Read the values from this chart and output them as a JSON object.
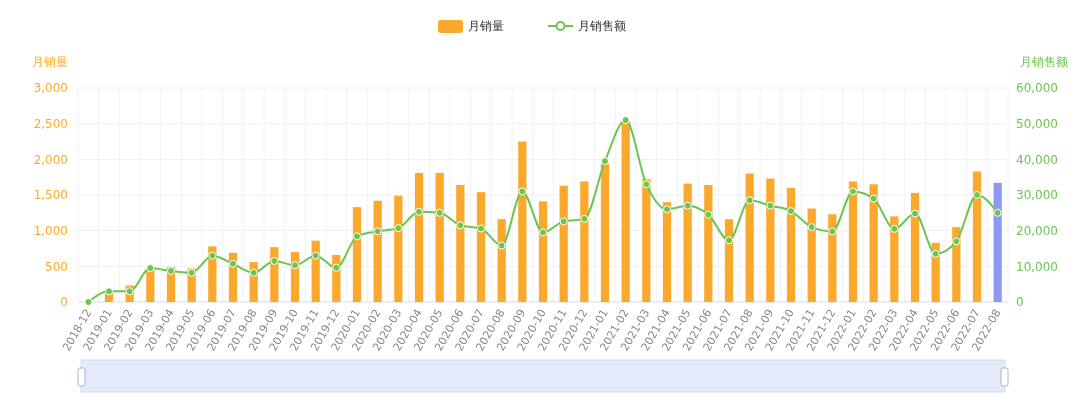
{
  "chart_data": {
    "type": "bar",
    "ylabel": "月销量",
    "y2label": "月销售额",
    "legend": "top",
    "grid": true,
    "categories": [
      "2018-12",
      "2019-01",
      "2019-02",
      "2019-03",
      "2019-04",
      "2019-05",
      "2019-06",
      "2019-07",
      "2019-08",
      "2019-09",
      "2019-10",
      "2019-11",
      "2019-12",
      "2020-01",
      "2020-02",
      "2020-03",
      "2020-04",
      "2020-05",
      "2020-06",
      "2020-07",
      "2020-08",
      "2020-09",
      "2020-10",
      "2020-11",
      "2020-12",
      "2021-01",
      "2021-02",
      "2021-03",
      "2021-04",
      "2021-05",
      "2021-06",
      "2021-07",
      "2021-08",
      "2021-09",
      "2021-10",
      "2021-11",
      "2021-12",
      "2022-01",
      "2022-02",
      "2022-03",
      "2022-04",
      "2022-05",
      "2022-06",
      "2022-07",
      "2022-08"
    ],
    "ylim": [
      0,
      3000
    ],
    "yticks": [
      {
        "value": 0,
        "label": "0"
      },
      {
        "value": 500,
        "label": "500"
      },
      {
        "value": 1000,
        "label": "1,000"
      },
      {
        "value": 1500,
        "label": "1,500"
      },
      {
        "value": 2000,
        "label": "2,000"
      },
      {
        "value": 2500,
        "label": "2,500"
      },
      {
        "value": 3000,
        "label": "3,000"
      }
    ],
    "y2lim": [
      0,
      60000
    ],
    "y2ticks": [
      {
        "value": 0,
        "label": "0"
      },
      {
        "value": 10000,
        "label": "10,000"
      },
      {
        "value": 20000,
        "label": "20,000"
      },
      {
        "value": 30000,
        "label": "30,000"
      },
      {
        "value": 40000,
        "label": "40,000"
      },
      {
        "value": 50000,
        "label": "50,000"
      },
      {
        "value": 60000,
        "label": "60,000"
      }
    ],
    "series": [
      {
        "name": "月销量",
        "color": "#fba92c",
        "colors": [
          "#fba92c",
          "#fba92c",
          "#fba92c",
          "#fba92c",
          "#fba92c",
          "#fba92c",
          "#fba92c",
          "#fba92c",
          "#fba92c",
          "#fba92c",
          "#fba92c",
          "#fba92c",
          "#fba92c",
          "#fba92c",
          "#fba92c",
          "#fba92c",
          "#fba92c",
          "#fba92c",
          "#fba92c",
          "#fba92c",
          "#fba92c",
          "#fba92c",
          "#fba92c",
          "#fba92c",
          "#fba92c",
          "#fba92c",
          "#fba92c",
          "#fba92c",
          "#fba92c",
          "#fba92c",
          "#fba92c",
          "#fba92c",
          "#fba92c",
          "#fba92c",
          "#fba92c",
          "#fba92c",
          "#fba92c",
          "#fba92c",
          "#fba92c",
          "#fba92c",
          "#fba92c",
          "#fba92c",
          "#fba92c",
          "#fba92c",
          "#8d99f0"
        ],
        "values": [
          0,
          150,
          230,
          480,
          490,
          470,
          780,
          690,
          560,
          770,
          700,
          860,
          660,
          1330,
          1420,
          1490,
          1810,
          1810,
          1640,
          1540,
          1160,
          2250,
          1410,
          1630,
          1690,
          1940,
          2530,
          1720,
          1400,
          1660,
          1640,
          1160,
          1800,
          1730,
          1600,
          1310,
          1230,
          1690,
          1650,
          1200,
          1530,
          830,
          1050,
          1830,
          1670
        ]
      },
      {
        "name": "月销售额",
        "type": "line",
        "axis": "y2",
        "color": "#6cc54e",
        "marker": "circle",
        "values": [
          0,
          3000,
          3000,
          9500,
          8700,
          8200,
          13000,
          10700,
          8200,
          11500,
          10300,
          13000,
          9600,
          18400,
          19800,
          20700,
          25300,
          25000,
          21500,
          20600,
          15800,
          31000,
          19500,
          22600,
          23300,
          39500,
          51000,
          33000,
          26000,
          27000,
          24500,
          17300,
          28500,
          27000,
          25500,
          21000,
          19800,
          31000,
          29000,
          20500,
          24800,
          13500,
          17000,
          30000,
          25000
        ]
      }
    ]
  }
}
